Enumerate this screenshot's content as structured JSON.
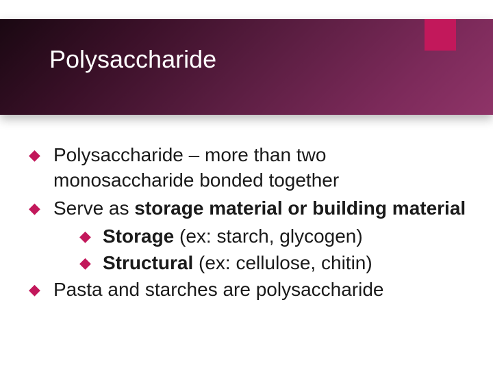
{
  "slide": {
    "title": "Polysaccharide",
    "accent_color": "#c2185b",
    "header_gradient_from": "#1a0812",
    "header_gradient_to": "#8f3468",
    "title_color": "#ffffff",
    "body_text_color": "#1a1a1a",
    "title_fontsize": 36,
    "body_fontsize": 28,
    "bullets": [
      {
        "text_parts": [
          {
            "text": "Polysaccharide – more than two monosaccharide bonded together",
            "bold": false
          }
        ],
        "sub": []
      },
      {
        "text_parts": [
          {
            "text": "Serve as ",
            "bold": false
          },
          {
            "text": "storage material or building material",
            "bold": true
          }
        ],
        "sub": [
          {
            "text_parts": [
              {
                "text": "Storage",
                "bold": true
              },
              {
                "text": " (ex: starch, glycogen)",
                "bold": false
              }
            ]
          },
          {
            "text_parts": [
              {
                "text": "Structural",
                "bold": true
              },
              {
                "text": " (ex: cellulose, chitin)",
                "bold": false
              }
            ]
          }
        ]
      },
      {
        "text_parts": [
          {
            "text": "Pasta and starches are polysaccharide",
            "bold": false
          }
        ],
        "sub": []
      }
    ]
  }
}
